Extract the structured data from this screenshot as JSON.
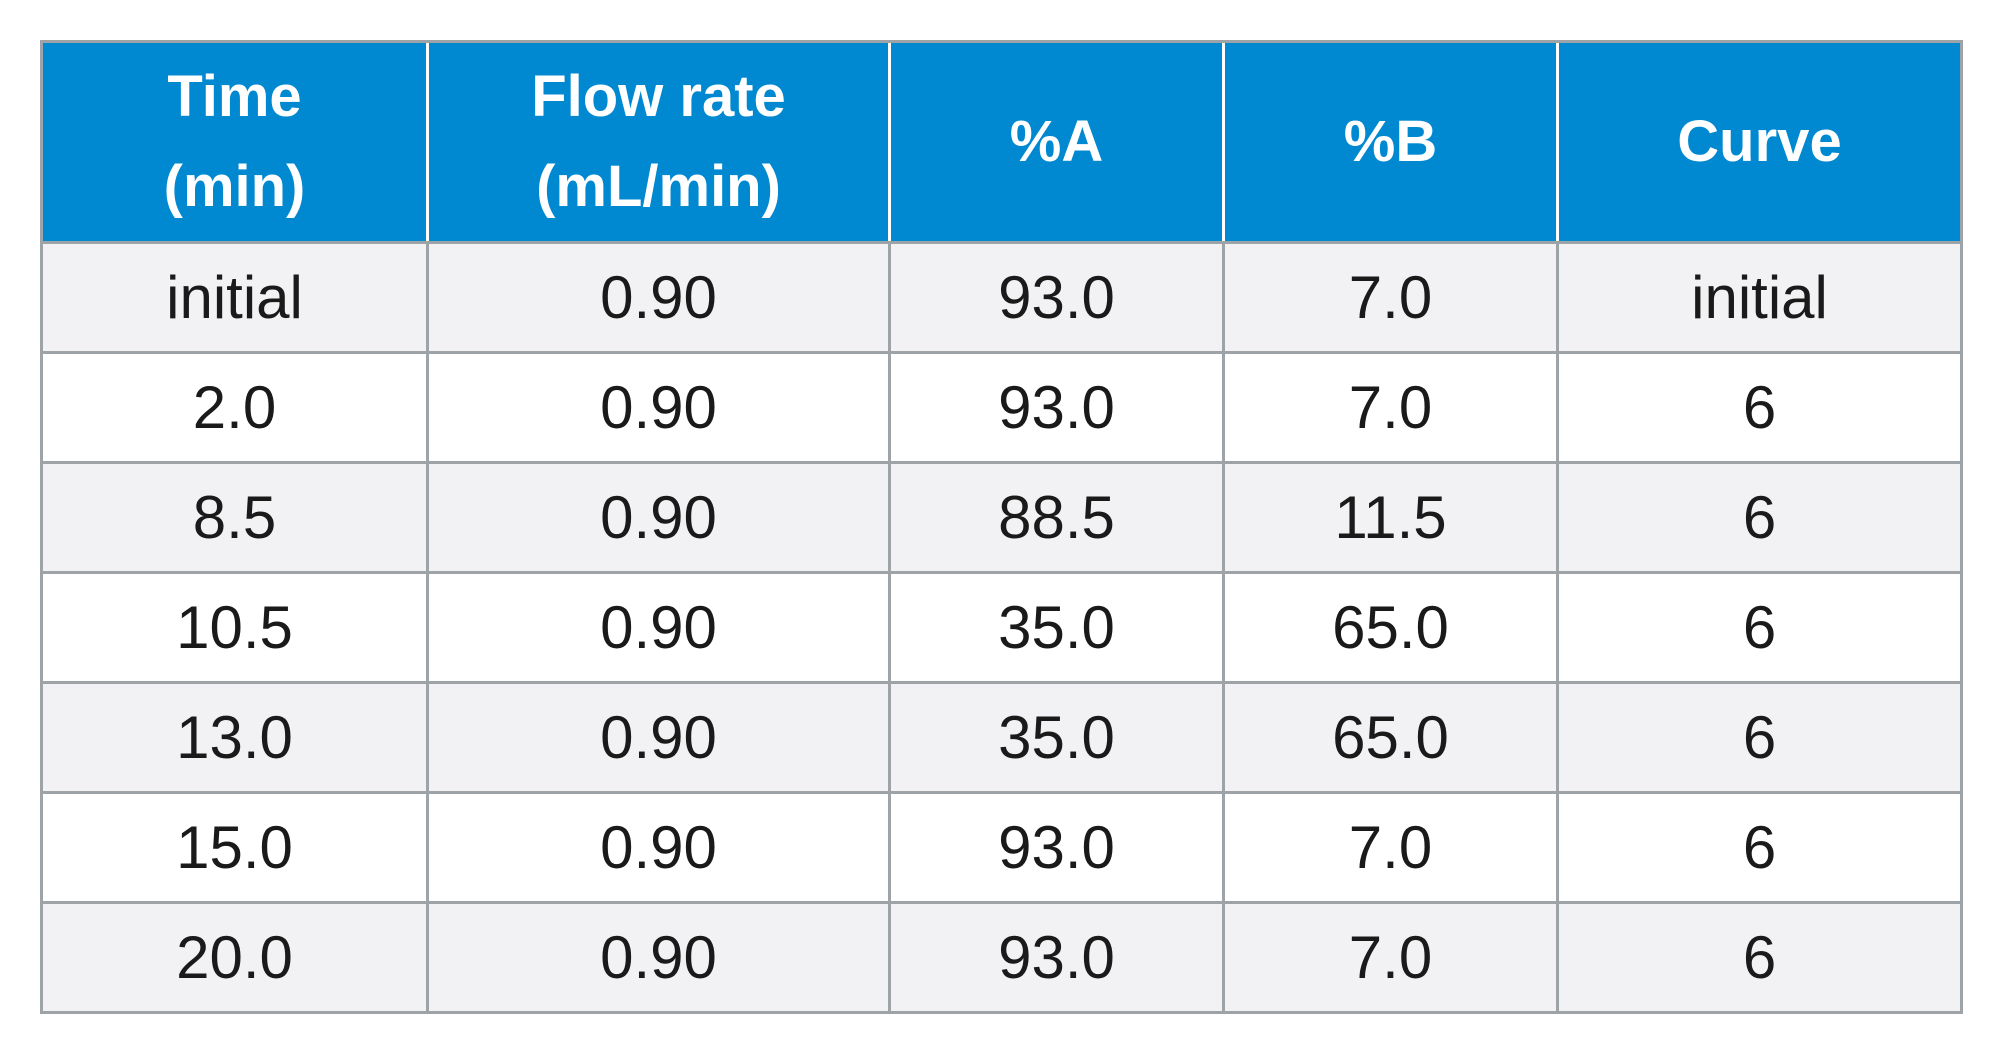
{
  "table": {
    "headers": [
      {
        "lines": [
          "Time",
          "(min)"
        ]
      },
      {
        "lines": [
          "Flow rate",
          "(mL/min)"
        ]
      },
      {
        "lines": [
          "%A"
        ]
      },
      {
        "lines": [
          "%B"
        ]
      },
      {
        "lines": [
          "Curve"
        ]
      }
    ],
    "rows": [
      [
        "initial",
        "0.90",
        "93.0",
        "7.0",
        "initial"
      ],
      [
        "2.0",
        "0.90",
        "93.0",
        "7.0",
        "6"
      ],
      [
        "8.5",
        "0.90",
        "88.5",
        "11.5",
        "6"
      ],
      [
        "10.5",
        "0.90",
        "35.0",
        "65.0",
        "6"
      ],
      [
        "13.0",
        "0.90",
        "35.0",
        "65.0",
        "6"
      ],
      [
        "15.0",
        "0.90",
        "93.0",
        "7.0",
        "6"
      ],
      [
        "20.0",
        "0.90",
        "93.0",
        "7.0",
        "6"
      ]
    ],
    "colors": {
      "header_bg": "#0088d1",
      "header_text": "#ffffff",
      "row_odd_bg": "#f2f2f4",
      "row_even_bg": "#ffffff",
      "border": "#9ea3a8",
      "cell_text": "#1a1a1a"
    }
  }
}
